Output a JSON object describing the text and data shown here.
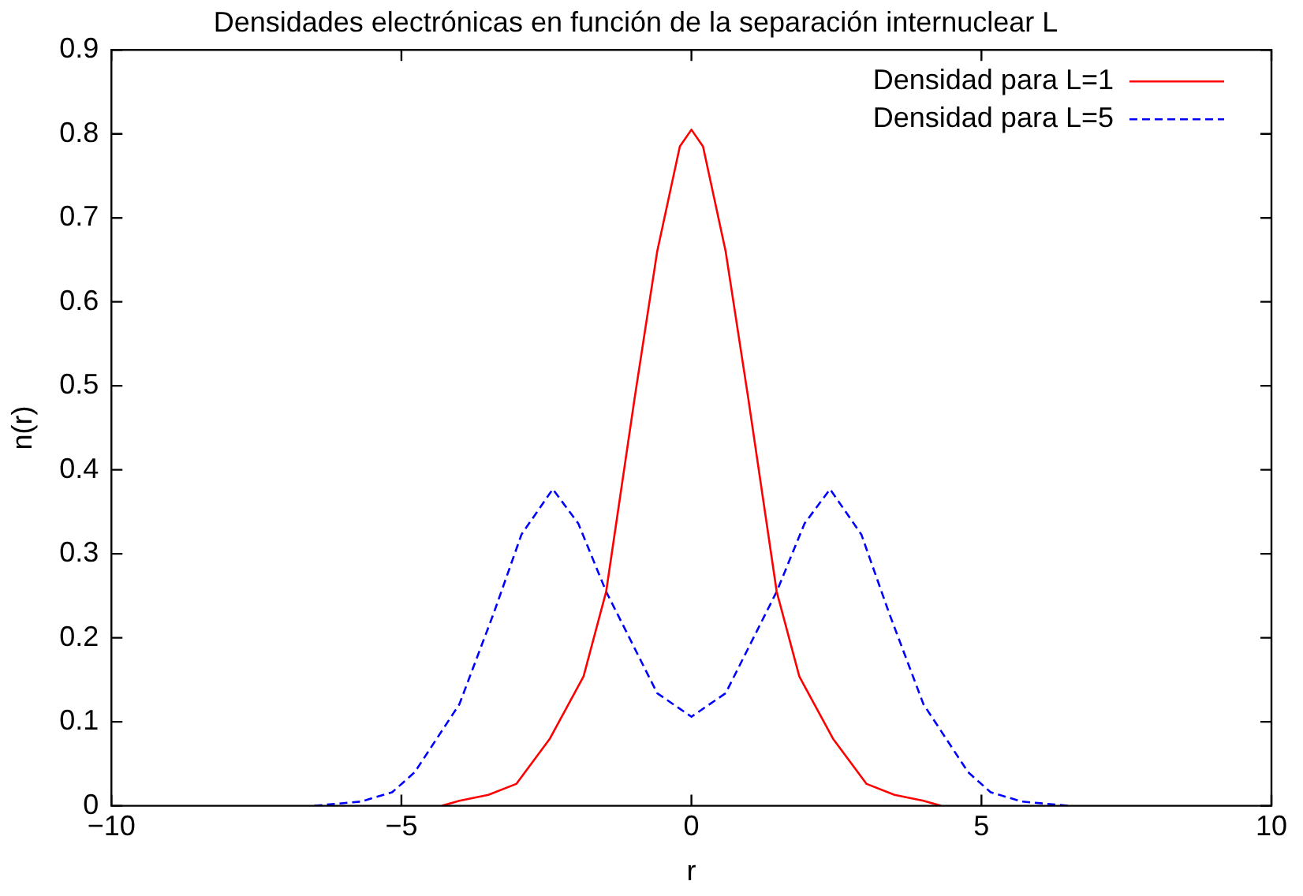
{
  "chart_data": {
    "type": "line",
    "title": "Densidades electrónicas en función de la separación internuclear L",
    "xlabel": "r",
    "ylabel": "n(r)",
    "xlim": [
      -10,
      10
    ],
    "xticks": [
      -10,
      -5,
      0,
      5,
      10
    ],
    "ylim": [
      0,
      0.9
    ],
    "yticks": [
      0,
      0.1,
      0.2,
      0.3,
      0.4,
      0.5,
      0.6,
      0.7,
      0.8,
      0.9
    ],
    "grid": false,
    "legend": "top right",
    "marker": "none",
    "series": [
      {
        "name": "Densidad para L=1",
        "color": "#ff0000",
        "line_style": "solid",
        "x": [
          -4.3,
          -4.0,
          -3.5,
          -3.02,
          -2.44,
          -1.86,
          -1.47,
          -0.98,
          -0.59,
          -0.2,
          0,
          0.2,
          0.59,
          0.98,
          1.47,
          1.86,
          2.44,
          3.02,
          3.5,
          4.0,
          4.3
        ],
        "values": [
          0,
          0.006,
          0.013,
          0.026,
          0.08,
          0.154,
          0.255,
          0.485,
          0.66,
          0.785,
          0.805,
          0.785,
          0.66,
          0.485,
          0.255,
          0.154,
          0.08,
          0.026,
          0.013,
          0.006,
          0
        ]
      },
      {
        "name": "Densidad para L=5",
        "color": "#0000ff",
        "line_style": "dashed",
        "x": [
          -6.5,
          -5.7,
          -5.16,
          -4.77,
          -4.0,
          -3.41,
          -2.93,
          -2.39,
          -1.95,
          -1.47,
          -0.59,
          0,
          0.59,
          1.47,
          1.95,
          2.39,
          2.93,
          3.41,
          4.0,
          4.77,
          5.16,
          5.7,
          6.5
        ],
        "values": [
          0,
          0.005,
          0.016,
          0.04,
          0.121,
          0.229,
          0.323,
          0.377,
          0.336,
          0.255,
          0.134,
          0.106,
          0.134,
          0.255,
          0.336,
          0.377,
          0.323,
          0.229,
          0.121,
          0.04,
          0.016,
          0.005,
          0
        ]
      }
    ]
  }
}
